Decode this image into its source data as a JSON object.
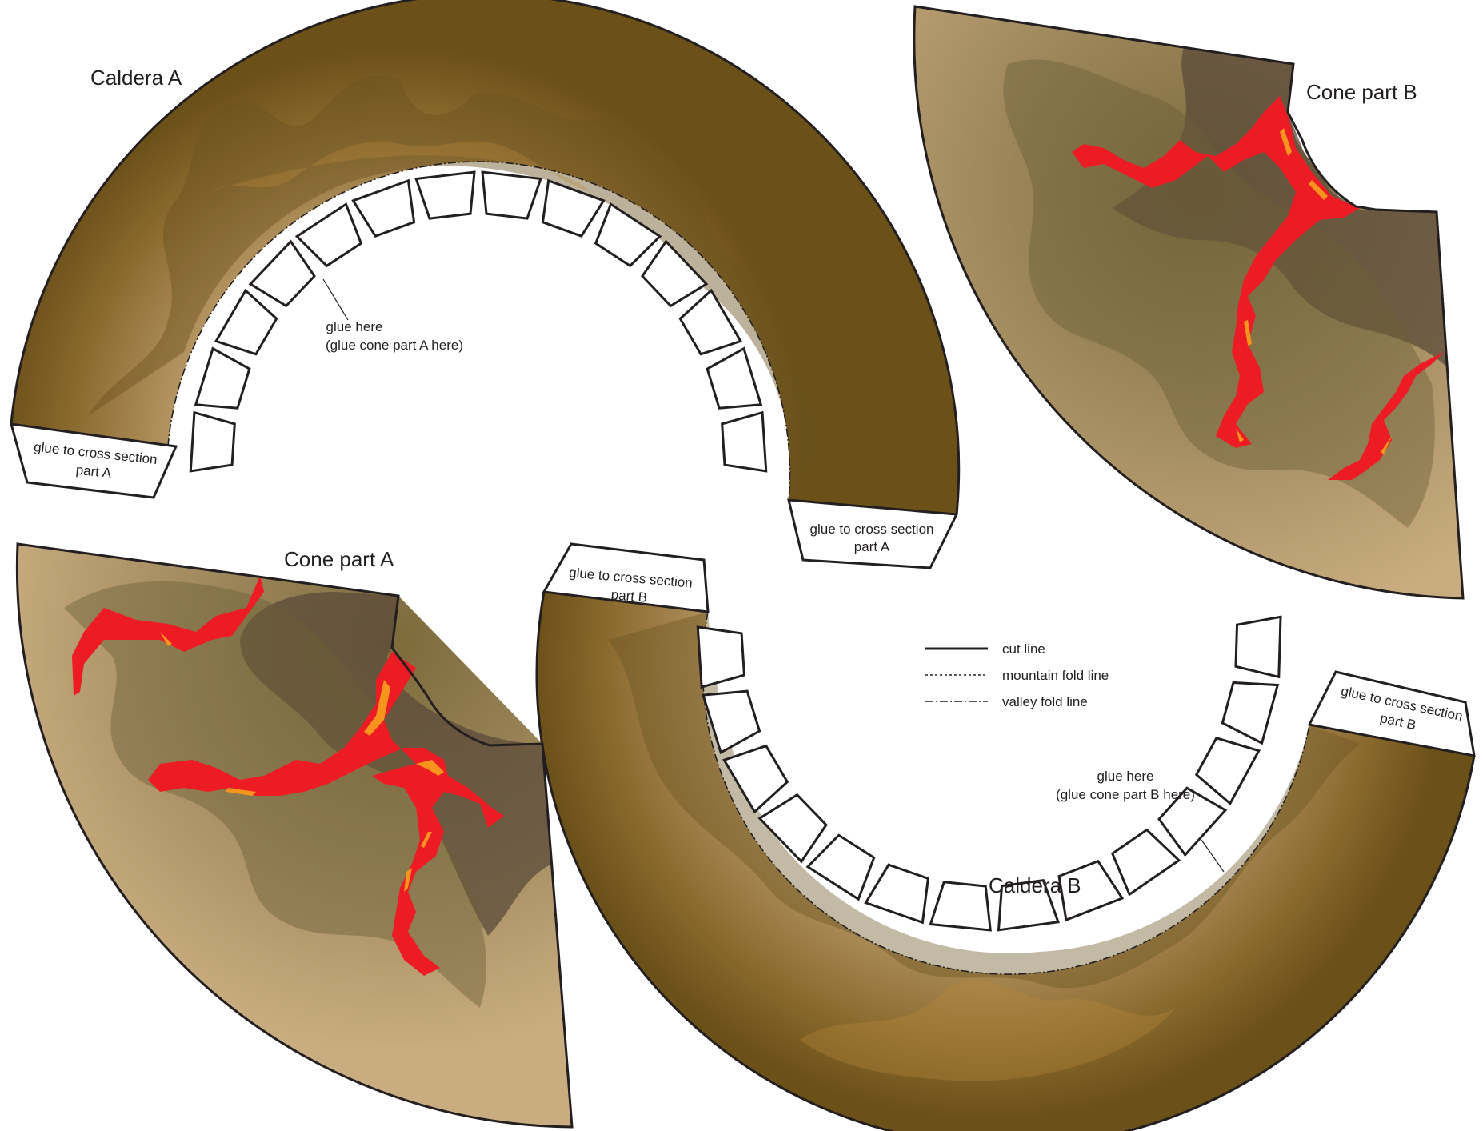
{
  "pieces": {
    "caldera_a": {
      "title": "Caldera A"
    },
    "caldera_b": {
      "title": "Caldera B"
    },
    "cone_a": {
      "title": "Cone part A"
    },
    "cone_b": {
      "title": "Cone part B"
    }
  },
  "labels": {
    "glue_cross_a_line1": "glue to cross section",
    "glue_cross_a_line2": "part A",
    "glue_cross_b_line1": "glue to cross section",
    "glue_cross_b_line2": "part B",
    "glue_here_a_line1": "glue here",
    "glue_here_a_line2": "(glue cone part A here)",
    "glue_here_b_line1": "glue here",
    "glue_here_b_line2": "(glue cone part B here)"
  },
  "legend": {
    "cut_line": "cut line",
    "mountain_fold_line": "mountain fold line",
    "valley_fold_line": "valley fold line"
  },
  "colors": {
    "earth_light": "#c9ad7f",
    "earth_dark": "#6e5418",
    "rock_shade": "#5b4b3a",
    "lava_red": "#ed1c24",
    "lava_orange": "#f7941d",
    "line": "#231f20"
  }
}
